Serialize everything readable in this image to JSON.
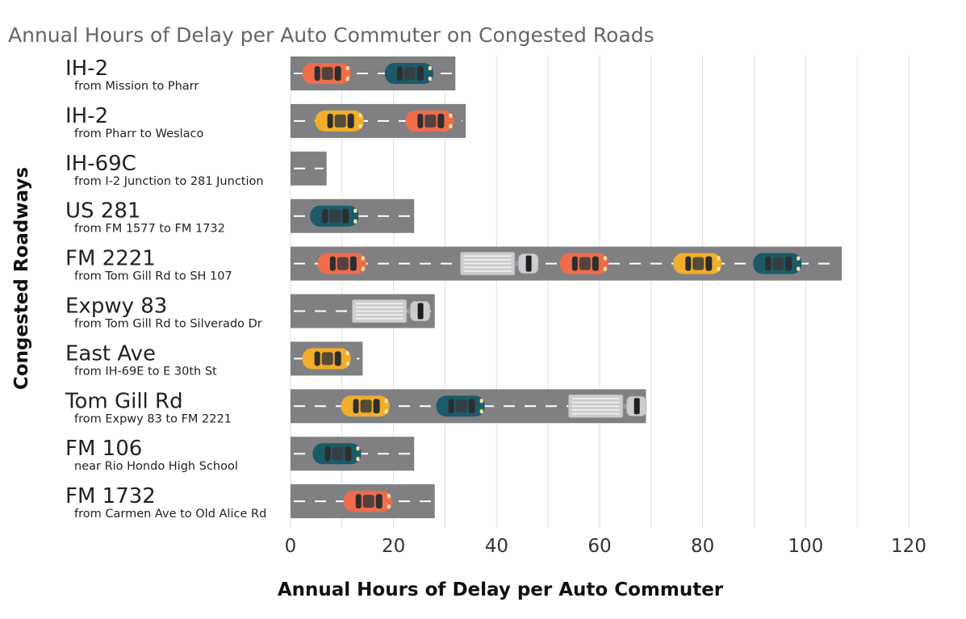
{
  "chart_data": {
    "type": "bar",
    "title": "Annual Hours of Delay per Auto Commuter on Congested Roads",
    "xlabel": "Annual Hours of Delay per Auto Commuter",
    "ylabel": "Congested Roadways",
    "xlim": [
      0,
      120
    ],
    "xticks": [
      "0",
      "20",
      "40",
      "60",
      "80",
      "100",
      "120"
    ],
    "grid": true,
    "orientation": "horizontal",
    "categories": [
      {
        "name": "IH-2",
        "segment": "from Mission to Pharr"
      },
      {
        "name": "IH-2",
        "segment": "from Pharr to Weslaco"
      },
      {
        "name": "IH-69C",
        "segment": "from I-2 Junction to 281 Junction"
      },
      {
        "name": "US 281",
        "segment": "from FM 1577 to FM 1732"
      },
      {
        "name": "FM 2221",
        "segment": "from Tom Gill Rd to SH 107"
      },
      {
        "name": "Expwy 83",
        "segment": "from Tom Gill Rd to Silverado Dr"
      },
      {
        "name": "East Ave",
        "segment": "from IH-69E to E 30th St"
      },
      {
        "name": "Tom Gill Rd",
        "segment": "from Expwy 83 to FM 2221"
      },
      {
        "name": "FM 106",
        "segment": "near Rio Hondo High School"
      },
      {
        "name": "FM 1732",
        "segment": "from Carmen Ave to Old Alice Rd"
      }
    ],
    "values": [
      32,
      34,
      7,
      24,
      107,
      28,
      14,
      69,
      24,
      28
    ],
    "vehicles": [
      [
        {
          "kind": "car",
          "color": "orange",
          "at": 7
        },
        {
          "kind": "car",
          "color": "teal",
          "at": 23
        }
      ],
      [
        {
          "kind": "car",
          "color": "yellow",
          "at": 9.5
        },
        {
          "kind": "car",
          "color": "orange",
          "at": 27
        }
      ],
      [],
      [
        {
          "kind": "car",
          "color": "teal",
          "at": 8.5
        }
      ],
      [
        {
          "kind": "car",
          "color": "orange",
          "at": 10
        },
        {
          "kind": "truck",
          "at": 33
        },
        {
          "kind": "car",
          "color": "orange",
          "at": 57
        },
        {
          "kind": "car",
          "color": "yellow",
          "at": 79
        },
        {
          "kind": "car",
          "color": "teal",
          "at": 94.5
        }
      ],
      [
        {
          "kind": "truck",
          "at": 12
        }
      ],
      [
        {
          "kind": "car",
          "color": "yellow",
          "at": 7
        }
      ],
      [
        {
          "kind": "car",
          "color": "yellow",
          "at": 14.5
        },
        {
          "kind": "car",
          "color": "teal",
          "at": 33
        },
        {
          "kind": "truck",
          "at": 54
        }
      ],
      [
        {
          "kind": "car",
          "color": "teal",
          "at": 9
        }
      ],
      [
        {
          "kind": "car",
          "color": "orange",
          "at": 15
        }
      ]
    ],
    "colors": {
      "road": "#808083",
      "lane_marking": "#ffffff",
      "grid": "#dddddd",
      "car_orange": "#ef6c4b",
      "car_yellow": "#f2ad2a",
      "car_teal": "#1b5b69",
      "truck": "#cdcdd0"
    }
  }
}
